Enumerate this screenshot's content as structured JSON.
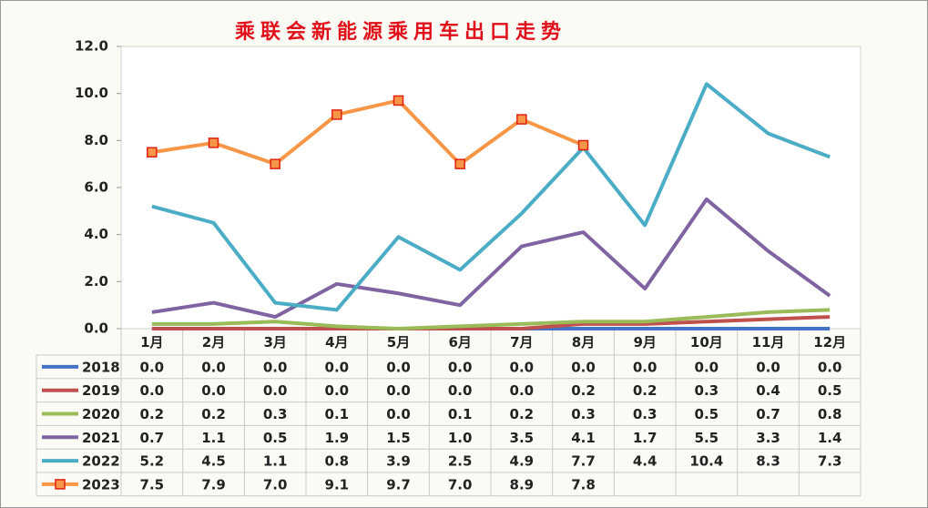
{
  "chart_data": {
    "type": "line",
    "title": "乘联会新能源乘用车出口走势",
    "categories": [
      "1月",
      "2月",
      "3月",
      "4月",
      "5月",
      "6月",
      "7月",
      "8月",
      "9月",
      "10月",
      "11月",
      "12月"
    ],
    "ylim": [
      0,
      12
    ],
    "yticks": [
      {
        "value": 0,
        "label": "0.0"
      },
      {
        "value": 2,
        "label": "2.0"
      },
      {
        "value": 4,
        "label": "4.0"
      },
      {
        "value": 6,
        "label": "6.0"
      },
      {
        "value": 8,
        "label": "8.0"
      },
      {
        "value": 10,
        "label": "10.0"
      },
      {
        "value": 12,
        "label": "12.0"
      }
    ],
    "series": [
      {
        "name": "2018",
        "color": "#4472c4",
        "values": [
          0,
          0,
          0,
          0,
          0,
          0,
          0,
          0,
          0,
          0,
          0,
          0
        ],
        "value_labels": [
          "0.0",
          "0.0",
          "0.0",
          "0.0",
          "0.0",
          "0.0",
          "0.0",
          "0.0",
          "0.0",
          "0.0",
          "0.0",
          "0.0"
        ]
      },
      {
        "name": "2019",
        "color": "#c0504d",
        "values": [
          0,
          0,
          0,
          0,
          0,
          0,
          0,
          0.2,
          0.2,
          0.3,
          0.4,
          0.5
        ],
        "value_labels": [
          "0.0",
          "0.0",
          "0.0",
          "0.0",
          "0.0",
          "0.0",
          "0.0",
          "0.2",
          "0.2",
          "0.3",
          "0.4",
          "0.5"
        ]
      },
      {
        "name": "2020",
        "color": "#9bbb59",
        "values": [
          0.2,
          0.2,
          0.3,
          0.1,
          0,
          0.1,
          0.2,
          0.3,
          0.3,
          0.5,
          0.7,
          0.8
        ],
        "value_labels": [
          "0.2",
          "0.2",
          "0.3",
          "0.1",
          "0.0",
          "0.1",
          "0.2",
          "0.3",
          "0.3",
          "0.5",
          "0.7",
          "0.8"
        ]
      },
      {
        "name": "2021",
        "color": "#8064a2",
        "values": [
          0.7,
          1.1,
          0.5,
          1.9,
          1.5,
          1,
          3.5,
          4.1,
          1.7,
          5.5,
          3.3,
          1.4
        ],
        "value_labels": [
          "0.7",
          "1.1",
          "0.5",
          "1.9",
          "1.5",
          "1.0",
          "3.5",
          "4.1",
          "1.7",
          "5.5",
          "3.3",
          "1.4"
        ]
      },
      {
        "name": "2022",
        "color": "#4bacc6",
        "values": [
          5.2,
          4.5,
          1.1,
          0.8,
          3.9,
          2.5,
          4.9,
          7.7,
          4.4,
          10.4,
          8.3,
          7.3
        ],
        "value_labels": [
          "5.2",
          "4.5",
          "1.1",
          "0.8",
          "3.9",
          "2.5",
          "4.9",
          "7.7",
          "4.4",
          "10.4",
          "8.3",
          "7.3"
        ]
      },
      {
        "name": "2023",
        "color": "#f79646",
        "marker": "square",
        "values": [
          7.5,
          7.9,
          7.0,
          9.1,
          9.7,
          7.0,
          8.9,
          7.8,
          null,
          null,
          null,
          null
        ],
        "value_labels": [
          "7.5",
          "7.9",
          "7.0",
          "9.1",
          "9.7",
          "7.0",
          "8.9",
          "7.8",
          null,
          null,
          null,
          null
        ]
      }
    ]
  }
}
